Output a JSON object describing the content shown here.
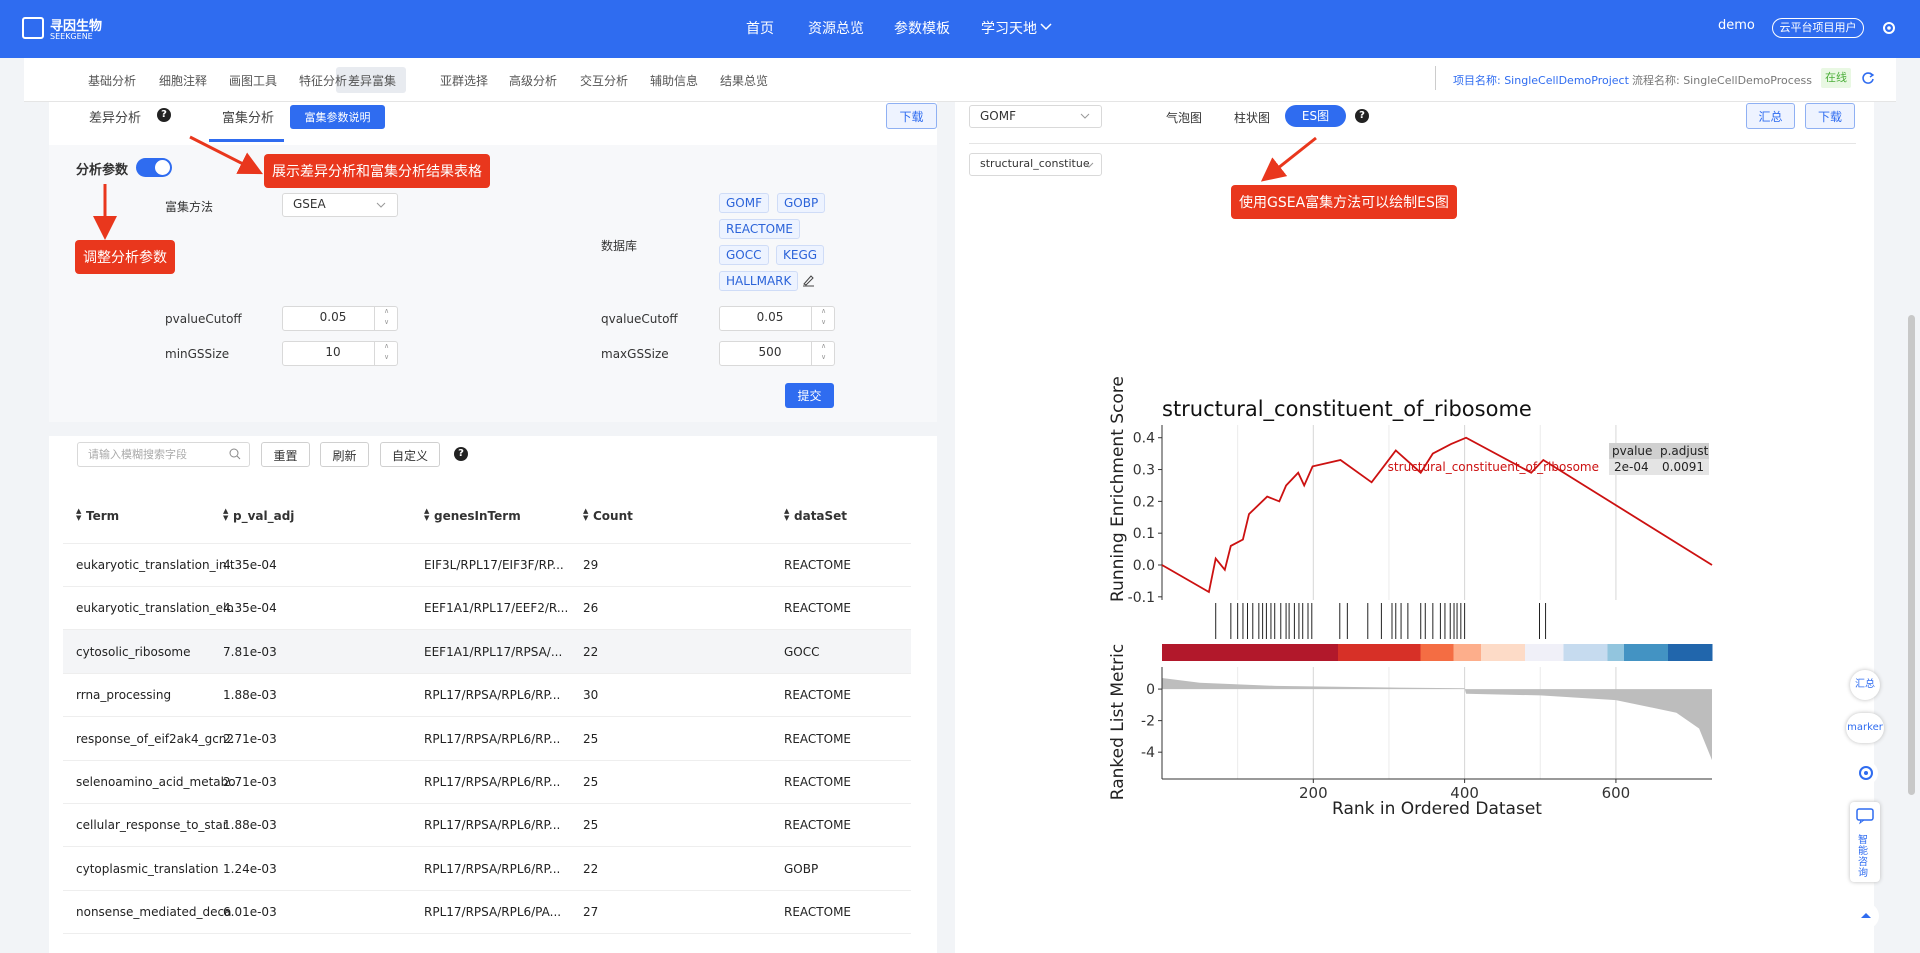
{
  "header": {
    "logo": "寻因生物",
    "logo_sub": "SEEKGENE",
    "nav": [
      "首页",
      "资源总览",
      "参数模板",
      "学习天地"
    ],
    "user": "demo",
    "role": "云平台项目用户"
  },
  "tabs": {
    "items": [
      "基础分析",
      "细胞注释",
      "画图工具",
      "特征分析",
      "差异富集",
      "亚群选择",
      "高级分析",
      "交互分析",
      "辅助信息",
      "结果总览"
    ],
    "project": "项目名称: SingleCellDemoProject",
    "process": "流程名称: SingleCellDemoProcess",
    "status": "在线"
  },
  "left": {
    "tabs": [
      "差异分析",
      "富集分析"
    ],
    "param_doc": "富集参数说明",
    "download": "下载",
    "params_title": "分析参数",
    "method_label": "富集方法",
    "method": "GSEA",
    "db_label": "数据库",
    "databases": [
      "GOMF",
      "GOBP",
      "REACTOME",
      "GOCC",
      "KEGG",
      "HALLMARK"
    ],
    "fields": [
      {
        "label": "pvalueCutoff",
        "value": 0.05
      },
      {
        "label": "qvalueCutoff",
        "value": 0.05
      },
      {
        "label": "minGSSize",
        "value": 10
      },
      {
        "label": "maxGSSize",
        "value": 500
      }
    ],
    "submit": "提交",
    "search_placeholder": "请输入模糊搜索字段",
    "buttons": [
      "重置",
      "刷新",
      "自定义"
    ]
  },
  "annotations": [
    "展示差异分析和富集分析结果表格",
    "调整分析参数",
    "使用GSEA富集方法可以绘制ES图"
  ],
  "table": {
    "headers": [
      "Term",
      "p_val_adj",
      "genesInTerm",
      "Count",
      "dataSet"
    ],
    "rows": [
      [
        "eukaryotic_translation_init",
        "4.35e-04",
        "EIF3L/RPL17/EIF3F/RP...",
        "29",
        "REACTOME"
      ],
      [
        "eukaryotic_translation_elo",
        "4.35e-04",
        "EEF1A1/RPL17/EEF2/R...",
        "26",
        "REACTOME"
      ],
      [
        "cytosolic_ribosome",
        "7.81e-03",
        "EEF1A1/RPL17/RPSA/...",
        "22",
        "GOCC"
      ],
      [
        "rrna_processing",
        "1.88e-03",
        "RPL17/RPSA/RPL6/RP...",
        "30",
        "REACTOME"
      ],
      [
        "response_of_eif2ak4_gcn2",
        "2.71e-03",
        "RPL17/RPSA/RPL6/RP...",
        "25",
        "REACTOME"
      ],
      [
        "selenoamino_acid_metabo",
        "2.71e-03",
        "RPL17/RPSA/RPL6/RP...",
        "25",
        "REACTOME"
      ],
      [
        "cellular_response_to_star",
        "1.88e-03",
        "RPL17/RPSA/RPL6/RP...",
        "25",
        "REACTOME"
      ],
      [
        "cytoplasmic_translation",
        "1.24e-03",
        "RPL17/RPSA/RPL6/RP...",
        "22",
        "GOBP"
      ],
      [
        "nonsense_mediated_deca",
        "6.01e-03",
        "RPL17/RPSA/RPL6/PA...",
        "27",
        "REACTOME"
      ]
    ]
  },
  "right": {
    "db_select": "GOMF",
    "plot_types": [
      "气泡图",
      "柱状图",
      "ES图"
    ],
    "summary": "汇总",
    "download": "下载",
    "term_select": "structural_constitue"
  },
  "side": [
    "汇总",
    "marker",
    "智能咨询"
  ],
  "chart_data": {
    "type": "gsea",
    "title": "structural_constituent_of_ribosome",
    "series_name": "structural_constituent_of_ribosome",
    "color": "#cc1111",
    "ylabel": "Running Enrichment Score",
    "ylabel2": "Ranked List Metric",
    "xlabel": "Rank in Ordered Dataset",
    "xlim": [
      0,
      727
    ],
    "xticks": [
      200,
      400,
      600
    ],
    "x_minor_ticks": [
      100,
      300,
      500
    ],
    "es": {
      "x": [
        0,
        62,
        71,
        83,
        91,
        107,
        115,
        139,
        155,
        164,
        180,
        188,
        199,
        236,
        277,
        293,
        309,
        342,
        358,
        382,
        402,
        488,
        504,
        727
      ],
      "y": [
        0,
        -0.085,
        0.02,
        -0.015,
        0.06,
        0.08,
        0.16,
        0.215,
        0.2,
        0.25,
        0.29,
        0.25,
        0.31,
        0.33,
        0.26,
        0.31,
        0.36,
        0.29,
        0.35,
        0.38,
        0.4,
        0.29,
        0.33,
        0
      ],
      "ylim": [
        -0.11,
        0.44
      ],
      "yticks": [
        {
          "value": 0.4,
          "label": "0.4"
        },
        0.3,
        0.2,
        0.1,
        {
          "value": 0,
          "label": "0.0"
        },
        -0.1
      ]
    },
    "hits": [
      71,
      91,
      100,
      107,
      113,
      120,
      128,
      133,
      138,
      144,
      149,
      157,
      164,
      168,
      175,
      181,
      186,
      193,
      198,
      235,
      245,
      272,
      290,
      304,
      309,
      316,
      325,
      342,
      348,
      358,
      368,
      374,
      381,
      386,
      390,
      395,
      400,
      499,
      507
    ],
    "metric": {
      "x": [
        0,
        50,
        150,
        300,
        400,
        402,
        500,
        600,
        680,
        710,
        727
      ],
      "y": [
        0.7,
        0.4,
        0.2,
        0.1,
        0.05,
        -0.3,
        -0.4,
        -0.7,
        -1.5,
        -2.5,
        -4.5
      ],
      "ylim": [
        -5.7,
        1.4
      ],
      "yticks": [
        0,
        -2,
        -4
      ]
    },
    "stats": {
      "headers": [
        "pvalue",
        "p.adjust"
      ],
      "values": [
        "2e-04",
        "0.0091"
      ]
    }
  }
}
